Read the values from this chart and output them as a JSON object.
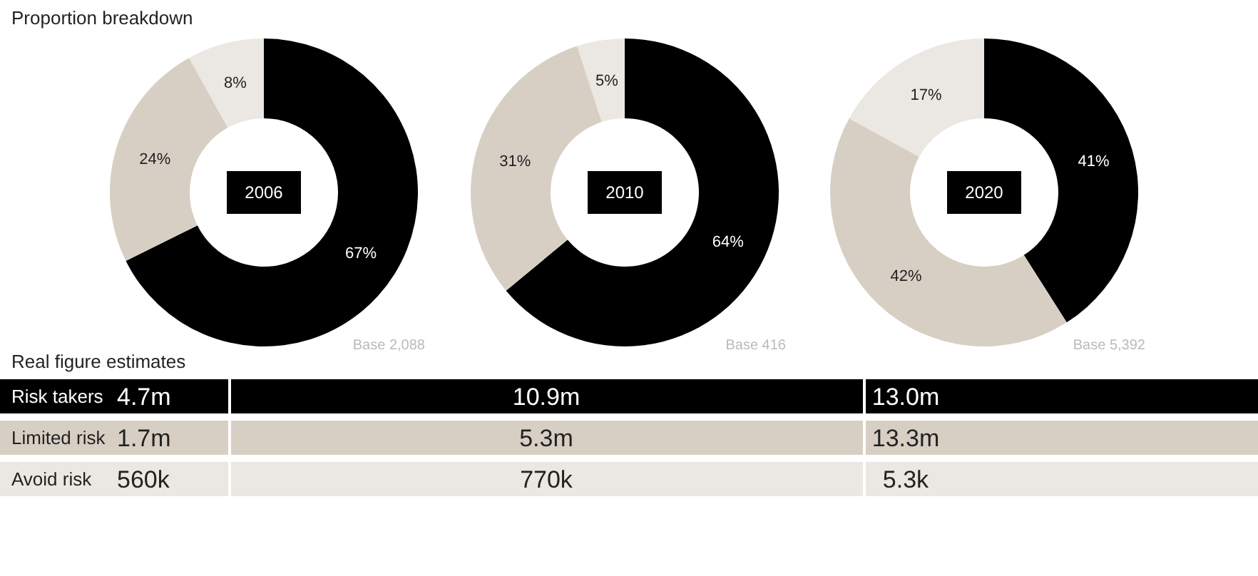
{
  "chart_data": [
    {
      "type": "donut",
      "subtitle": "Proportion breakdown",
      "title": "2006",
      "categories": [
        null,
        null,
        null
      ],
      "values": [
        67,
        24,
        8
      ],
      "colors": [
        "#000000",
        "#d8cfc4",
        "#ebe7e2"
      ],
      "value_labels": [
        "67%",
        "24%",
        "8%"
      ],
      "annotations": [
        "Base 2,088"
      ]
    },
    {
      "type": "donut",
      "title": "2010",
      "categories": [
        null,
        null,
        null
      ],
      "values": [
        64,
        31,
        5
      ],
      "colors": [
        "#000000",
        "#d8cfc4",
        "#ebe7e2"
      ],
      "value_labels": [
        "64%",
        "31%",
        "5%"
      ],
      "annotations": [
        "Base 416"
      ]
    },
    {
      "type": "donut",
      "title": "2020",
      "categories": [
        null,
        null,
        null
      ],
      "values": [
        41,
        42,
        17
      ],
      "colors": [
        "#000000",
        "#d8cfc4",
        "#ebe7e2"
      ],
      "value_labels": [
        "41%",
        "42%",
        "17%"
      ],
      "annotations": [
        "Base 5,392"
      ]
    },
    {
      "type": "other",
      "title": "Real figure estimates",
      "y_categories": [
        "Risk takers",
        "Limited risk",
        "Avoid risk"
      ],
      "colors": [
        "#000000",
        "#d8cfc4",
        "#ebe7e2"
      ],
      "cell_labels": [
        [
          "4.7m",
          "10.9m",
          "13.0m"
        ],
        [
          "1.7m",
          "5.3m",
          "13.3m"
        ],
        [
          "560k",
          "770k",
          "5.3k"
        ]
      ]
    }
  ]
}
